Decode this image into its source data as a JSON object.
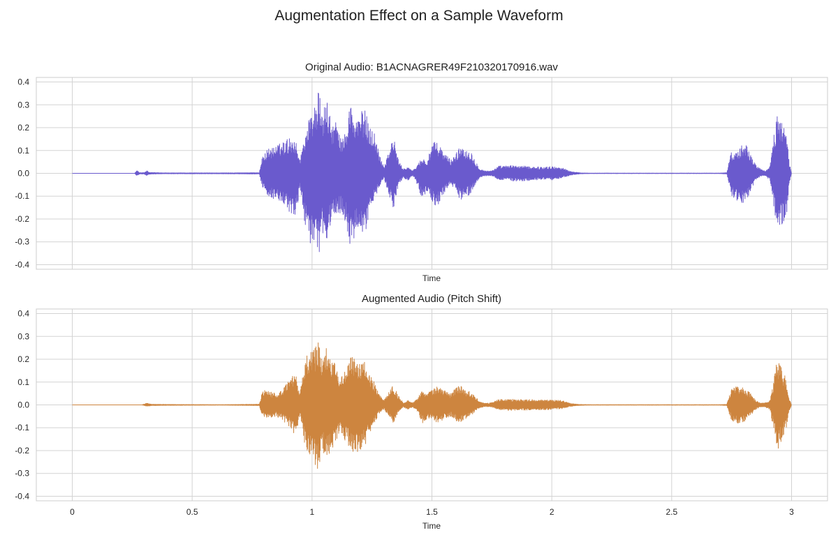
{
  "figure": {
    "suptitle": "Augmentation Effect on a Sample Waveform"
  },
  "chart_data": [
    {
      "type": "line",
      "title": "Original Audio: B1ACNAGRER49F210320170916.wav",
      "xlabel": "Time",
      "ylabel": "",
      "xlim": [
        -0.15,
        3.15
      ],
      "ylim": [
        -0.42,
        0.42
      ],
      "x_ticks": [
        "0",
        "0.5",
        "1",
        "1.5",
        "2",
        "2.5",
        "3"
      ],
      "x_tick_values": [
        0,
        0.5,
        1,
        1.5,
        2,
        2.5,
        3
      ],
      "x_tick_labels_visible": false,
      "y_ticks": [
        "0.4",
        "0.3",
        "0.2",
        "0.1",
        "0.0",
        "-0.1",
        "-0.2",
        "-0.3",
        "-0.4"
      ],
      "y_tick_values": [
        0.4,
        0.3,
        0.2,
        0.1,
        0.0,
        -0.1,
        -0.2,
        -0.3,
        -0.4
      ],
      "grid": true,
      "color": "#6a5acd",
      "envelope": {
        "time": [
          0.0,
          0.26,
          0.27,
          0.28,
          0.3,
          0.31,
          0.32,
          0.38,
          0.62,
          0.78,
          0.79,
          0.8,
          0.82,
          0.85,
          0.88,
          0.91,
          0.93,
          0.95,
          0.97,
          0.99,
          1.01,
          1.03,
          1.04,
          1.06,
          1.08,
          1.1,
          1.12,
          1.14,
          1.16,
          1.18,
          1.2,
          1.22,
          1.24,
          1.26,
          1.28,
          1.3,
          1.32,
          1.34,
          1.36,
          1.38,
          1.4,
          1.42,
          1.44,
          1.46,
          1.48,
          1.5,
          1.52,
          1.54,
          1.56,
          1.58,
          1.6,
          1.62,
          1.64,
          1.66,
          1.68,
          1.7,
          1.72,
          1.74,
          1.76,
          1.78,
          1.8,
          1.84,
          1.88,
          1.92,
          1.96,
          2.0,
          2.04,
          2.08,
          2.12,
          2.16,
          2.2,
          2.4,
          2.6,
          2.7,
          2.73,
          2.74,
          2.75,
          2.77,
          2.79,
          2.81,
          2.83,
          2.85,
          2.87,
          2.89,
          2.91,
          2.92,
          2.94,
          2.96,
          2.98,
          2.99,
          3.0
        ],
        "upper": [
          0.0,
          0.0,
          0.015,
          0.003,
          0.003,
          0.012,
          0.004,
          0.002,
          0.002,
          0.003,
          0.06,
          0.09,
          0.11,
          0.12,
          0.14,
          0.16,
          0.15,
          0.06,
          0.18,
          0.25,
          0.3,
          0.37,
          0.25,
          0.33,
          0.22,
          0.23,
          0.15,
          0.18,
          0.32,
          0.22,
          0.27,
          0.28,
          0.21,
          0.18,
          0.09,
          0.03,
          0.1,
          0.16,
          0.06,
          0.02,
          0.03,
          0.01,
          0.04,
          0.07,
          0.05,
          0.13,
          0.14,
          0.11,
          0.08,
          0.06,
          0.09,
          0.12,
          0.11,
          0.1,
          0.06,
          0.02,
          0.012,
          0.01,
          0.018,
          0.033,
          0.032,
          0.035,
          0.032,
          0.03,
          0.028,
          0.03,
          0.026,
          0.008,
          0.002,
          0.001,
          0.001,
          0.001,
          0.001,
          0.001,
          0.003,
          0.06,
          0.1,
          0.09,
          0.12,
          0.13,
          0.08,
          0.04,
          0.02,
          0.01,
          0.03,
          0.12,
          0.26,
          0.24,
          0.16,
          0.05,
          0.0
        ],
        "lower": [
          0.0,
          0.0,
          -0.012,
          -0.003,
          -0.003,
          -0.01,
          -0.004,
          -0.002,
          -0.002,
          -0.003,
          -0.05,
          -0.08,
          -0.1,
          -0.12,
          -0.14,
          -0.18,
          -0.2,
          -0.07,
          -0.22,
          -0.3,
          -0.34,
          -0.38,
          -0.25,
          -0.33,
          -0.2,
          -0.19,
          -0.17,
          -0.22,
          -0.34,
          -0.28,
          -0.26,
          -0.27,
          -0.18,
          -0.12,
          -0.06,
          -0.02,
          -0.09,
          -0.16,
          -0.05,
          -0.02,
          -0.03,
          -0.01,
          -0.05,
          -0.12,
          -0.08,
          -0.12,
          -0.15,
          -0.11,
          -0.07,
          -0.05,
          -0.08,
          -0.12,
          -0.11,
          -0.09,
          -0.05,
          -0.02,
          -0.012,
          -0.01,
          -0.016,
          -0.03,
          -0.028,
          -0.034,
          -0.035,
          -0.03,
          -0.028,
          -0.03,
          -0.02,
          -0.008,
          -0.002,
          -0.001,
          -0.001,
          -0.001,
          -0.001,
          -0.001,
          -0.003,
          -0.05,
          -0.1,
          -0.12,
          -0.14,
          -0.12,
          -0.08,
          -0.03,
          -0.015,
          -0.01,
          -0.03,
          -0.1,
          -0.25,
          -0.23,
          -0.18,
          -0.06,
          0.0
        ]
      }
    },
    {
      "type": "line",
      "title": "Augmented Audio (Pitch Shift)",
      "xlabel": "Time",
      "ylabel": "",
      "xlim": [
        -0.15,
        3.15
      ],
      "ylim": [
        -0.42,
        0.42
      ],
      "x_ticks": [
        "0",
        "0.5",
        "1",
        "1.5",
        "2",
        "2.5",
        "3"
      ],
      "x_tick_values": [
        0,
        0.5,
        1,
        1.5,
        2,
        2.5,
        3
      ],
      "x_tick_labels_visible": true,
      "y_ticks": [
        "0.4",
        "0.3",
        "0.2",
        "0.1",
        "0.0",
        "-0.1",
        "-0.2",
        "-0.3",
        "-0.4"
      ],
      "y_tick_values": [
        0.4,
        0.3,
        0.2,
        0.1,
        0.0,
        -0.1,
        -0.2,
        -0.3,
        -0.4
      ],
      "grid": true,
      "color": "#cd853f",
      "envelope": {
        "time": [
          0.0,
          0.29,
          0.3,
          0.31,
          0.33,
          0.4,
          0.62,
          0.78,
          0.79,
          0.8,
          0.82,
          0.85,
          0.88,
          0.91,
          0.93,
          0.95,
          0.97,
          0.99,
          1.01,
          1.03,
          1.04,
          1.06,
          1.08,
          1.1,
          1.12,
          1.14,
          1.16,
          1.18,
          1.2,
          1.22,
          1.24,
          1.26,
          1.28,
          1.3,
          1.32,
          1.34,
          1.36,
          1.38,
          1.4,
          1.42,
          1.44,
          1.46,
          1.48,
          1.5,
          1.52,
          1.54,
          1.56,
          1.58,
          1.6,
          1.62,
          1.64,
          1.66,
          1.68,
          1.7,
          1.72,
          1.74,
          1.76,
          1.78,
          1.8,
          1.84,
          1.88,
          1.92,
          1.96,
          2.0,
          2.04,
          2.08,
          2.12,
          2.16,
          2.2,
          2.4,
          2.6,
          2.7,
          2.73,
          2.74,
          2.75,
          2.77,
          2.79,
          2.81,
          2.83,
          2.85,
          2.87,
          2.89,
          2.91,
          2.92,
          2.94,
          2.96,
          2.98,
          2.99,
          3.0
        ],
        "upper": [
          0.0,
          0.0,
          0.004,
          0.008,
          0.003,
          0.002,
          0.001,
          0.003,
          0.05,
          0.07,
          0.06,
          0.05,
          0.07,
          0.12,
          0.14,
          0.05,
          0.2,
          0.24,
          0.25,
          0.3,
          0.2,
          0.26,
          0.22,
          0.18,
          0.12,
          0.15,
          0.22,
          0.2,
          0.18,
          0.19,
          0.14,
          0.1,
          0.05,
          0.02,
          0.06,
          0.09,
          0.04,
          0.01,
          0.02,
          0.01,
          0.03,
          0.07,
          0.05,
          0.07,
          0.08,
          0.07,
          0.06,
          0.05,
          0.08,
          0.09,
          0.06,
          0.06,
          0.04,
          0.015,
          0.008,
          0.008,
          0.015,
          0.025,
          0.024,
          0.025,
          0.024,
          0.024,
          0.022,
          0.022,
          0.02,
          0.006,
          0.002,
          0.001,
          0.001,
          0.001,
          0.001,
          0.001,
          0.003,
          0.04,
          0.07,
          0.08,
          0.08,
          0.07,
          0.05,
          0.02,
          0.01,
          0.01,
          0.02,
          0.07,
          0.21,
          0.17,
          0.1,
          0.03,
          0.0
        ],
        "lower": [
          0.0,
          0.0,
          -0.003,
          -0.006,
          -0.003,
          -0.002,
          -0.001,
          -0.003,
          -0.04,
          -0.06,
          -0.06,
          -0.05,
          -0.07,
          -0.1,
          -0.14,
          -0.05,
          -0.18,
          -0.22,
          -0.26,
          -0.3,
          -0.18,
          -0.25,
          -0.2,
          -0.16,
          -0.13,
          -0.16,
          -0.2,
          -0.21,
          -0.2,
          -0.18,
          -0.13,
          -0.08,
          -0.04,
          -0.02,
          -0.05,
          -0.08,
          -0.03,
          -0.01,
          -0.02,
          -0.01,
          -0.03,
          -0.08,
          -0.06,
          -0.06,
          -0.08,
          -0.07,
          -0.06,
          -0.05,
          -0.07,
          -0.08,
          -0.06,
          -0.05,
          -0.03,
          -0.013,
          -0.008,
          -0.008,
          -0.013,
          -0.022,
          -0.024,
          -0.025,
          -0.024,
          -0.023,
          -0.022,
          -0.02,
          -0.018,
          -0.006,
          -0.002,
          -0.001,
          -0.001,
          -0.001,
          -0.001,
          -0.001,
          -0.003,
          -0.04,
          -0.07,
          -0.08,
          -0.08,
          -0.07,
          -0.05,
          -0.02,
          -0.01,
          -0.01,
          -0.02,
          -0.08,
          -0.2,
          -0.16,
          -0.1,
          -0.03,
          0.0
        ]
      }
    }
  ]
}
